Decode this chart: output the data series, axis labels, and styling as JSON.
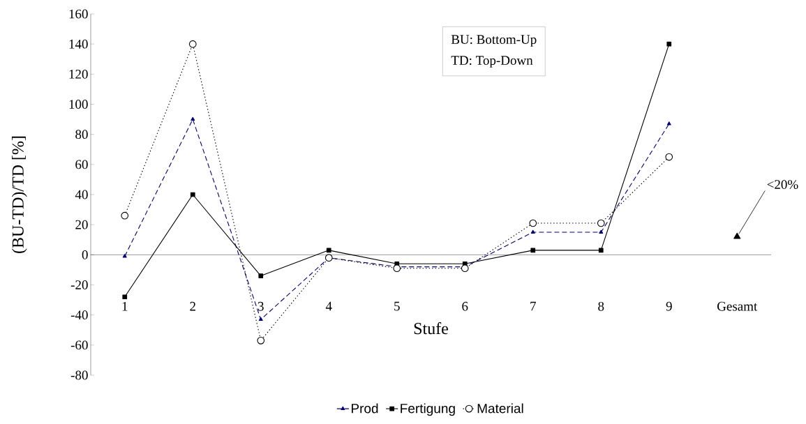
{
  "chart_data": {
    "type": "line",
    "xlabel": "Stufe",
    "ylabel": "(BU-TD)/TD [%]",
    "categories": [
      "1",
      "2",
      "3",
      "4",
      "5",
      "6",
      "7",
      "8",
      "9",
      "Gesamt"
    ],
    "series": [
      {
        "name": "Prod",
        "color": "#000080",
        "marker": "triangle",
        "line_style": "dashed",
        "values": [
          -1,
          90,
          -43,
          -2,
          -8,
          -8,
          15,
          15,
          87,
          null
        ]
      },
      {
        "name": "Fertigung",
        "color": "#000000",
        "marker": "square",
        "line_style": "solid",
        "values": [
          -28,
          40,
          -14,
          3,
          -6,
          -6,
          3,
          3,
          140,
          null
        ]
      },
      {
        "name": "Material",
        "color": "#000000",
        "marker": "circle",
        "line_style": "dotted",
        "values": [
          26,
          140,
          -57,
          -2,
          -9,
          -9,
          21,
          21,
          65,
          null
        ]
      },
      {
        "type": "scatter",
        "color": "#000000",
        "marker": "triangle",
        "values": [
          null,
          null,
          null,
          null,
          null,
          null,
          null,
          null,
          null,
          12
        ]
      }
    ],
    "ylim": [
      -80,
      160
    ],
    "yticks": [
      -80,
      -60,
      -40,
      -20,
      0,
      20,
      40,
      60,
      80,
      100,
      120,
      140,
      160
    ],
    "legend": "bottom",
    "annotations": [
      "BU: Bottom-Up",
      "TD: Top-Down",
      {
        "text": "<20%",
        "x": "Gesamt",
        "y": 12
      }
    ]
  }
}
